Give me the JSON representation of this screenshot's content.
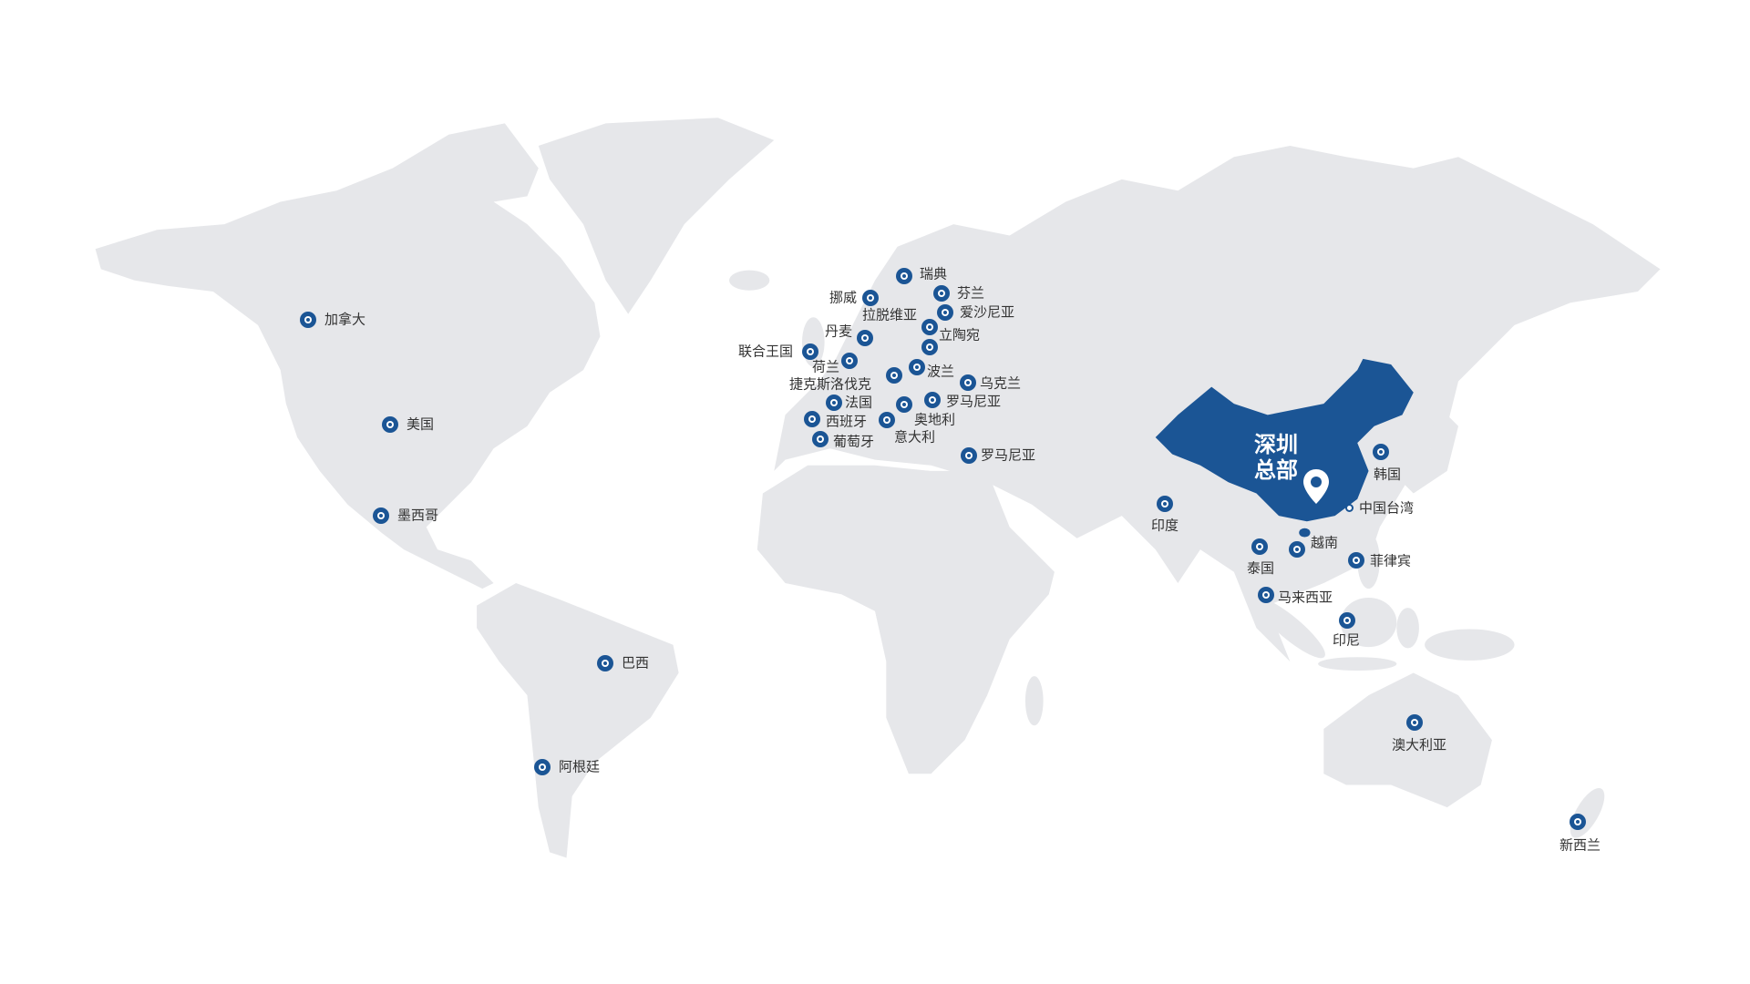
{
  "colors": {
    "land": "#e6e7ea",
    "highlight": "#1b5595",
    "marker": "#1b5595"
  },
  "headquarters": {
    "label_line1": "深圳",
    "label_line2": "总部",
    "icon": "map-pin-icon"
  },
  "markers": [
    {
      "id": "canada",
      "label": "加拿大"
    },
    {
      "id": "usa",
      "label": "美国"
    },
    {
      "id": "mexico",
      "label": "墨西哥"
    },
    {
      "id": "brazil",
      "label": "巴西"
    },
    {
      "id": "argentina",
      "label": "阿根廷"
    },
    {
      "id": "sweden",
      "label": "瑞典"
    },
    {
      "id": "norway",
      "label": "挪威"
    },
    {
      "id": "finland",
      "label": "芬兰"
    },
    {
      "id": "latvia",
      "label": "拉脱维亚"
    },
    {
      "id": "estonia",
      "label": "爱沙尼亚"
    },
    {
      "id": "lithuania",
      "label": "立陶宛"
    },
    {
      "id": "denmark",
      "label": "丹麦"
    },
    {
      "id": "uk",
      "label": "联合王国"
    },
    {
      "id": "netherlands",
      "label": "荷兰"
    },
    {
      "id": "czech",
      "label": "捷克斯洛伐克"
    },
    {
      "id": "poland",
      "label": "波兰"
    },
    {
      "id": "ukraine",
      "label": "乌克兰"
    },
    {
      "id": "france",
      "label": "法国"
    },
    {
      "id": "romania",
      "label": "罗马尼亚"
    },
    {
      "id": "austria",
      "label": "奥地利"
    },
    {
      "id": "spain",
      "label": "西班牙"
    },
    {
      "id": "italy",
      "label": "意大利"
    },
    {
      "id": "portugal",
      "label": "葡萄牙"
    },
    {
      "id": "romania2",
      "label": "罗马尼亚"
    },
    {
      "id": "korea",
      "label": "韩国"
    },
    {
      "id": "taiwan",
      "label": "中国台湾"
    },
    {
      "id": "india",
      "label": "印度"
    },
    {
      "id": "vietnam",
      "label": "越南"
    },
    {
      "id": "thailand",
      "label": "泰国"
    },
    {
      "id": "philippines",
      "label": "菲律宾"
    },
    {
      "id": "malaysia",
      "label": "马来西亚"
    },
    {
      "id": "indonesia",
      "label": "印尼"
    },
    {
      "id": "australia",
      "label": "澳大利亚"
    },
    {
      "id": "new_zealand",
      "label": "新西兰"
    }
  ]
}
